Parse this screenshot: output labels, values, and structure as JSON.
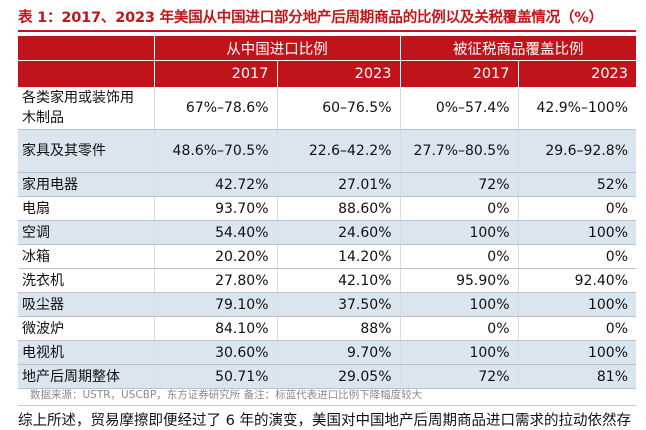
{
  "caption": "表 1：2017、2023 年美国从中国进口部分地产后周期商品的比例以及关税覆盖情况（%）",
  "table": {
    "group_headers": [
      "从中国进口比例",
      "被征税商品覆盖比例"
    ],
    "year_headers": [
      "2017",
      "2023",
      "2017",
      "2023"
    ],
    "rows": [
      {
        "label": "各类家用或装饰用木制品",
        "values": [
          "67%–78.6%",
          "60–76.5%",
          "0%–57.4%",
          "42.9%–100%"
        ]
      },
      {
        "label": "家具及其零件",
        "values": [
          "48.6%–70.5%",
          "22.6–42.2%",
          "27.7%–80.5%",
          "29.6–92.8%"
        ]
      },
      {
        "label": "家用电器",
        "values": [
          "42.72%",
          "27.01%",
          "72%",
          "52%"
        ]
      },
      {
        "label": "电扇",
        "values": [
          "93.70%",
          "88.60%",
          "0%",
          "0%"
        ]
      },
      {
        "label": "空调",
        "values": [
          "54.40%",
          "24.60%",
          "100%",
          "100%"
        ]
      },
      {
        "label": "冰箱",
        "values": [
          "20.20%",
          "14.20%",
          "0%",
          "0%"
        ]
      },
      {
        "label": "洗衣机",
        "values": [
          "27.80%",
          "42.10%",
          "95.90%",
          "92.40%"
        ]
      },
      {
        "label": "吸尘器",
        "values": [
          "79.10%",
          "37.50%",
          "100%",
          "100%"
        ]
      },
      {
        "label": "微波炉",
        "values": [
          "84.10%",
          "88%",
          "0%",
          "0%"
        ]
      },
      {
        "label": "电视机",
        "values": [
          "30.60%",
          "9.70%",
          "100%",
          "100%"
        ]
      },
      {
        "label": "地产后周期整体",
        "values": [
          "50.71%",
          "29.05%",
          "72%",
          "81%"
        ]
      }
    ]
  },
  "source": "数据来源：USTR，USCBP，东方证券研究所 备注：标蓝代表进口比例下降幅度较大",
  "body_text": "综上所述，贸易摩擦即便经过了 6 年的演变，美国对中国地产后周期商品进口需求的拉动依然存"
}
